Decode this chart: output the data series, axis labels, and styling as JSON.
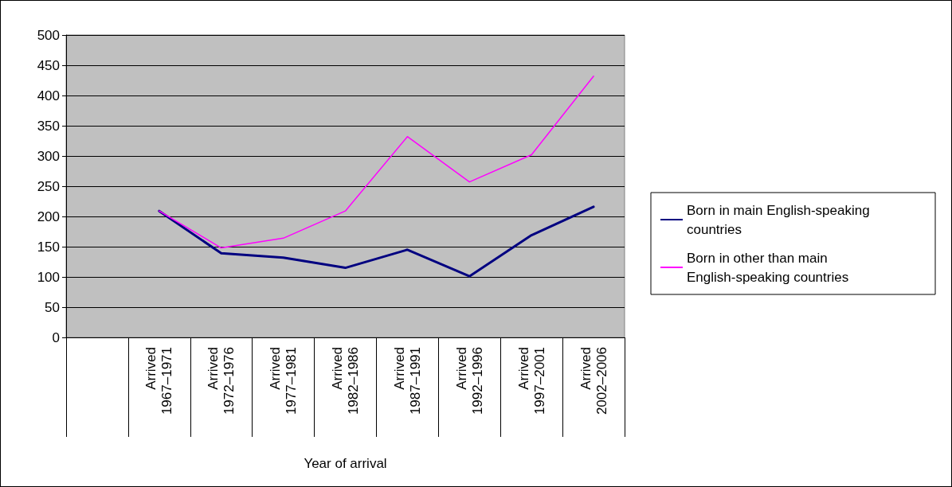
{
  "chart_data": {
    "type": "line",
    "xlabel": "Year of arrival",
    "categories": [
      null,
      "Arrived 1967–1971",
      "Arrived 1972–1976",
      "Arrived 1977–1981",
      "Arrived 1982–1986",
      "Arrived 1987–1991",
      "Arrived 1992–1996",
      "Arrived 1997–2001",
      "Arrived 2002–2006"
    ],
    "series": [
      {
        "name": "Born in main English-speaking countries",
        "color": "#000080",
        "values": [
          null,
          209,
          139,
          132,
          115,
          145,
          101,
          169,
          216
        ]
      },
      {
        "name": "Born in other than main English-speaking countries",
        "color": "#ff00ff",
        "values": [
          null,
          209,
          148,
          164,
          209,
          332,
          257,
          302,
          432
        ]
      }
    ],
    "ylim": [
      0,
      500
    ],
    "yticks": [
      0,
      50,
      100,
      150,
      200,
      250,
      300,
      350,
      400,
      450,
      500
    ],
    "grid": "y",
    "legend": "right",
    "marker": "none",
    "line_style": "solid"
  }
}
